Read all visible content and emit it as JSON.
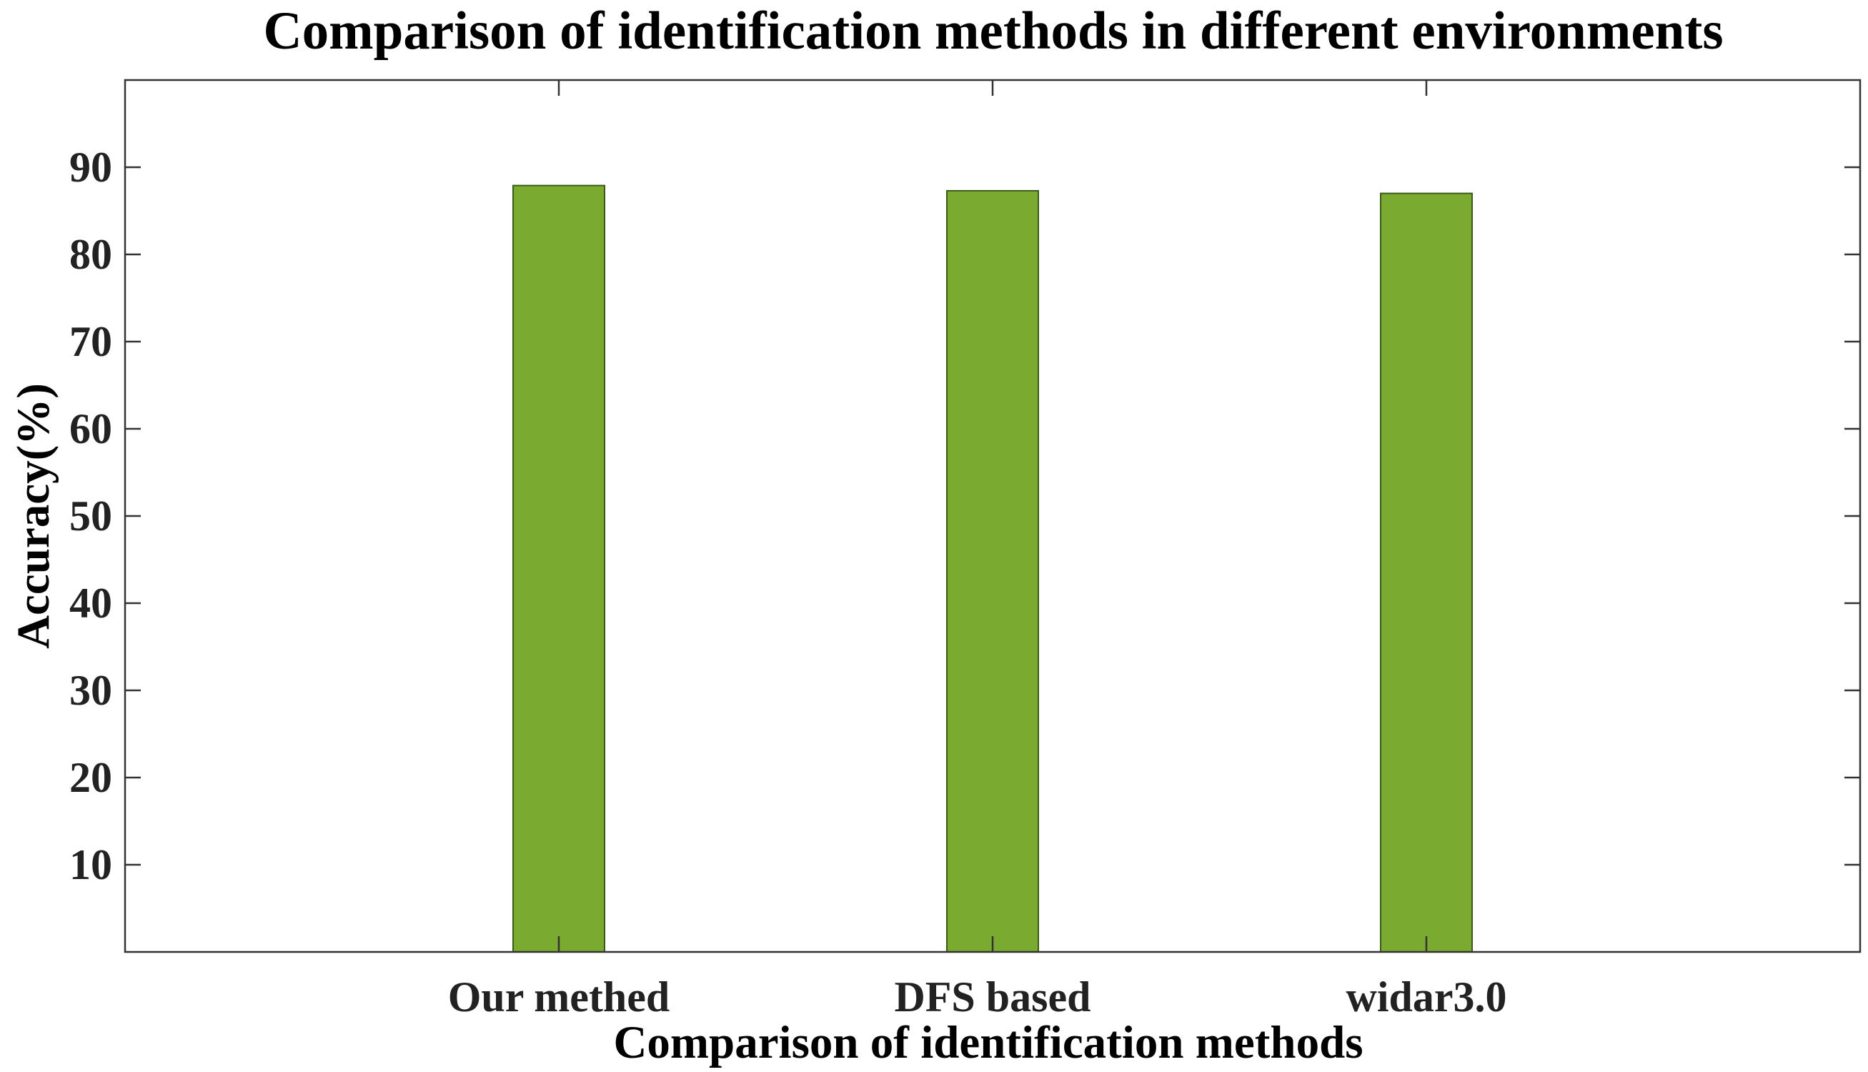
{
  "chart_data": {
    "type": "bar",
    "title": "Comparison of identification methods in different environments",
    "xlabel": "Comparison of  identification methods",
    "ylabel": "Accuracy(%)",
    "categories": [
      "Our methed",
      "DFS based",
      "widar3.0"
    ],
    "values": [
      87.9,
      87.3,
      87.0
    ],
    "ylim": [
      0,
      100
    ],
    "yticks": [
      10,
      20,
      30,
      40,
      50,
      60,
      70,
      80,
      90
    ],
    "grid": false,
    "legend": "none",
    "bar_color": "#7aab30",
    "bar_edge_color": "#3a5a1a"
  }
}
